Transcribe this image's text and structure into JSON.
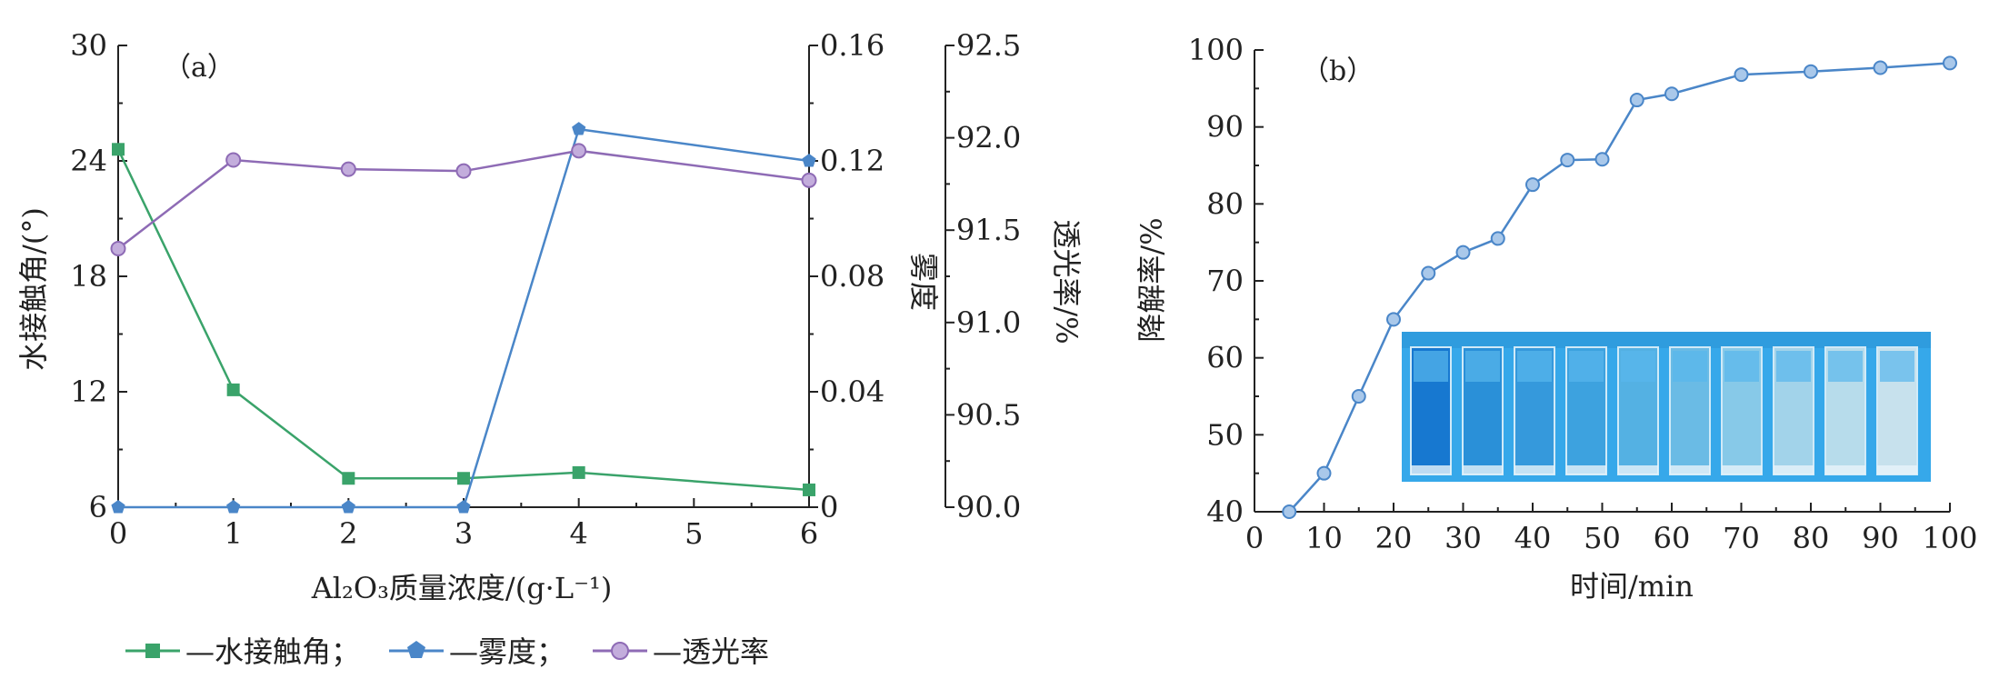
{
  "chart_data": [
    {
      "type": "line",
      "panel_label": "（a）",
      "xlabel": "Al₂O₃质量浓度/(g·L⁻¹)",
      "x_ticks": [
        "0",
        "1",
        "2",
        "3",
        "4",
        "5",
        "6"
      ],
      "xlim": [
        0,
        6
      ],
      "axes": {
        "left": {
          "label": "水接触角/(°)",
          "ticks": [
            "6",
            "12",
            "18",
            "24",
            "30"
          ],
          "lim": [
            6,
            30
          ]
        },
        "right1": {
          "label": "雾度",
          "ticks": [
            "0",
            "0.04",
            "0.08",
            "0.12",
            "0.16"
          ],
          "lim": [
            0,
            0.16
          ]
        },
        "right2": {
          "label": "透光率/%",
          "ticks": [
            "90.0",
            "90.5",
            "91.0",
            "91.5",
            "92.0",
            "92.5"
          ],
          "lim": [
            90.0,
            92.5
          ]
        }
      },
      "series": [
        {
          "name": "水接触角",
          "axis": "left",
          "color": "#3aa36a",
          "marker": "square",
          "x": [
            0,
            1,
            2,
            3,
            4,
            6
          ],
          "values": [
            24.6,
            12.1,
            7.5,
            7.5,
            7.8,
            6.9
          ]
        },
        {
          "name": "雾度",
          "axis": "right1",
          "color": "#4a86c8",
          "marker": "pentagon",
          "x": [
            0,
            1,
            2,
            3,
            4,
            6
          ],
          "values": [
            0,
            0,
            0,
            0,
            0.131,
            0.12
          ]
        },
        {
          "name": "透光率",
          "axis": "right2",
          "color": "#8e6bb5",
          "marker": "circle",
          "x": [
            0,
            1,
            2,
            3,
            4,
            6
          ],
          "values": [
            91.4,
            91.88,
            91.83,
            91.82,
            91.93,
            91.77
          ]
        }
      ],
      "legend": [
        {
          "label": "—水接触角；",
          "color": "#3aa36a",
          "marker": "square"
        },
        {
          "label": "—雾度；",
          "color": "#4a86c8",
          "marker": "pentagon"
        },
        {
          "label": "—透光率",
          "color": "#8e6bb5",
          "marker": "circle"
        }
      ],
      "legend_position": "bottom"
    },
    {
      "type": "line",
      "panel_label": "（b）",
      "xlabel": "时间/min",
      "ylabel": "降解率/%",
      "x_ticks": [
        "0",
        "10",
        "20",
        "30",
        "40",
        "50",
        "60",
        "70",
        "80",
        "90",
        "100"
      ],
      "y_ticks": [
        "40",
        "50",
        "60",
        "70",
        "80",
        "90",
        "100"
      ],
      "xlim": [
        0,
        100
      ],
      "ylim": [
        40,
        100
      ],
      "series": [
        {
          "color": "#4a86c8",
          "marker": "circle",
          "x": [
            5,
            10,
            15,
            20,
            25,
            30,
            35,
            40,
            45,
            50,
            55,
            60,
            70,
            80,
            90,
            100
          ],
          "values": [
            40,
            45,
            55,
            65,
            71,
            73.7,
            75.5,
            82.5,
            85.7,
            85.8,
            93.5,
            94.3,
            96.8,
            97.2,
            97.7,
            98.3
          ]
        }
      ],
      "inset": {
        "description_icon": "cuvette-photo",
        "count": 10,
        "background": "#36a8ea"
      }
    }
  ]
}
